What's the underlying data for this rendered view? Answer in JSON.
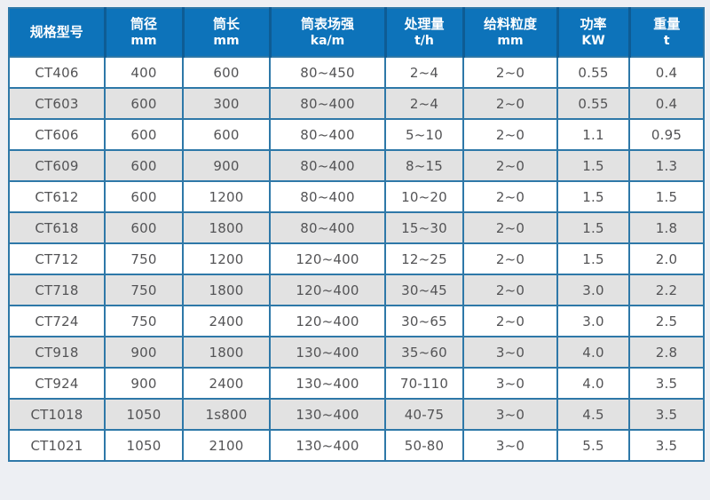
{
  "page": {
    "background_color": "#edeff3"
  },
  "colors": {
    "header_background": "#0d73ba",
    "header_separator": "#0e5c94",
    "header_text": "#ffffff",
    "grid_line": "#2e78a8",
    "stripe_row": "#e2e2e2",
    "plain_row": "#ffffff",
    "cell_text": "#545456"
  },
  "chart_data": {
    "type": "table",
    "title": "",
    "columns": [
      {
        "title": "规格型号",
        "unit": ""
      },
      {
        "title": "筒径",
        "unit": "mm"
      },
      {
        "title": "筒长",
        "unit": "mm"
      },
      {
        "title": "筒表场强",
        "unit": "ka/m"
      },
      {
        "title": "处理量",
        "unit": "t/h"
      },
      {
        "title": "给料粒度",
        "unit": "mm"
      },
      {
        "title": "功率",
        "unit": "KW"
      },
      {
        "title": "重量",
        "unit": "t"
      }
    ],
    "rows": [
      [
        "CT406",
        "400",
        "600",
        "80~450",
        "2~4",
        "2~0",
        "0.55",
        "0.4"
      ],
      [
        "CT603",
        "600",
        "300",
        "80~400",
        "2~4",
        "2~0",
        "0.55",
        "0.4"
      ],
      [
        "CT606",
        "600",
        "600",
        "80~400",
        "5~10",
        "2~0",
        "1.1",
        "0.95"
      ],
      [
        "CT609",
        "600",
        "900",
        "80~400",
        "8~15",
        "2~0",
        "1.5",
        "1.3"
      ],
      [
        "CT612",
        "600",
        "1200",
        "80~400",
        "10~20",
        "2~0",
        "1.5",
        "1.5"
      ],
      [
        "CT618",
        "600",
        "1800",
        "80~400",
        "15~30",
        "2~0",
        "1.5",
        "1.8"
      ],
      [
        "CT712",
        "750",
        "1200",
        "120~400",
        "12~25",
        "2~0",
        "1.5",
        "2.0"
      ],
      [
        "CT718",
        "750",
        "1800",
        "120~400",
        "30~45",
        "2~0",
        "3.0",
        "2.2"
      ],
      [
        "CT724",
        "750",
        "2400",
        "120~400",
        "30~65",
        "2~0",
        "3.0",
        "2.5"
      ],
      [
        "CT918",
        "900",
        "1800",
        "130~400",
        "35~60",
        "3~0",
        "4.0",
        "2.8"
      ],
      [
        "CT924",
        "900",
        "2400",
        "130~400",
        "70-110",
        "3~0",
        "4.0",
        "3.5"
      ],
      [
        "CT1018",
        "1050",
        "1s800",
        "130~400",
        "40-75",
        "3~0",
        "4.5",
        "3.5"
      ],
      [
        "CT1021",
        "1050",
        "2100",
        "130~400",
        "50-80",
        "3~0",
        "5.5",
        "3.5"
      ]
    ]
  }
}
